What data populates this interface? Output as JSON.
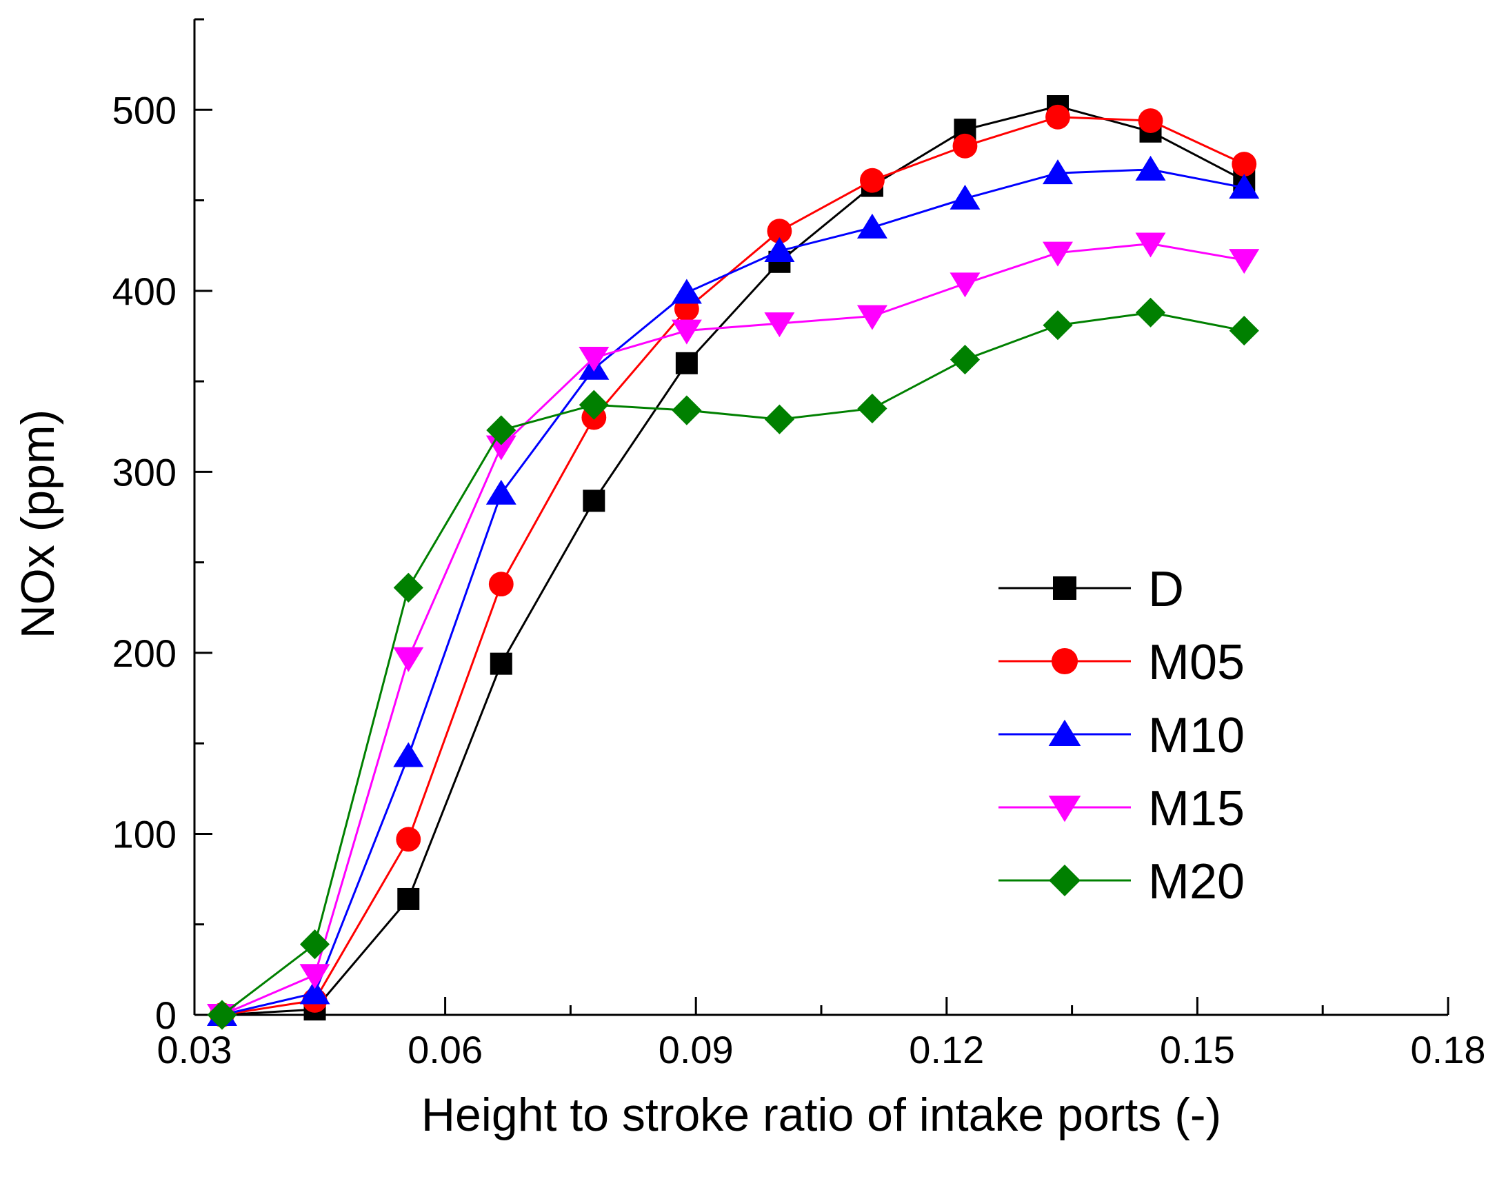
{
  "chart_data": {
    "type": "line",
    "title": "",
    "xlabel": "Height to stroke ratio of intake ports (-)",
    "ylabel": "NOx (ppm)",
    "xlim": [
      0.03,
      0.18
    ],
    "ylim": [
      0,
      550
    ],
    "xticks": [
      0.03,
      0.06,
      0.09,
      0.12,
      0.15,
      0.18
    ],
    "xtick_labels": [
      "0.03",
      "0.06",
      "0.09",
      "0.12",
      "0.15",
      "0.18"
    ],
    "yticks": [
      0,
      100,
      200,
      300,
      400,
      500
    ],
    "ytick_labels": [
      "0",
      "100",
      "200",
      "300",
      "400",
      "500"
    ],
    "grid": false,
    "legend_position": "right",
    "x": [
      0.0333,
      0.0444,
      0.0556,
      0.0667,
      0.0778,
      0.0889,
      0.1,
      0.1111,
      0.1222,
      0.1333,
      0.1444,
      0.1556
    ],
    "series": [
      {
        "name": "D",
        "color": "#000000",
        "marker": "square",
        "values": [
          0,
          3,
          64,
          194,
          284,
          360,
          416,
          458,
          489,
          502,
          488,
          461
        ]
      },
      {
        "name": "M05",
        "color": "#ff0000",
        "marker": "circle",
        "values": [
          0,
          8,
          97,
          238,
          330,
          390,
          433,
          461,
          480,
          496,
          494,
          470
        ]
      },
      {
        "name": "M10",
        "color": "#0000ff",
        "marker": "triangle-up",
        "values": [
          0,
          12,
          143,
          288,
          357,
          399,
          422,
          435,
          451,
          465,
          467,
          457
        ]
      },
      {
        "name": "M15",
        "color": "#ff00ff",
        "marker": "triangle-down",
        "values": [
          0,
          22,
          197,
          314,
          363,
          378,
          382,
          386,
          404,
          421,
          426,
          417
        ]
      },
      {
        "name": "M20",
        "color": "#008000",
        "marker": "diamond",
        "values": [
          0,
          39,
          236,
          323,
          337,
          334,
          329,
          335,
          362,
          381,
          388,
          378
        ]
      }
    ]
  }
}
